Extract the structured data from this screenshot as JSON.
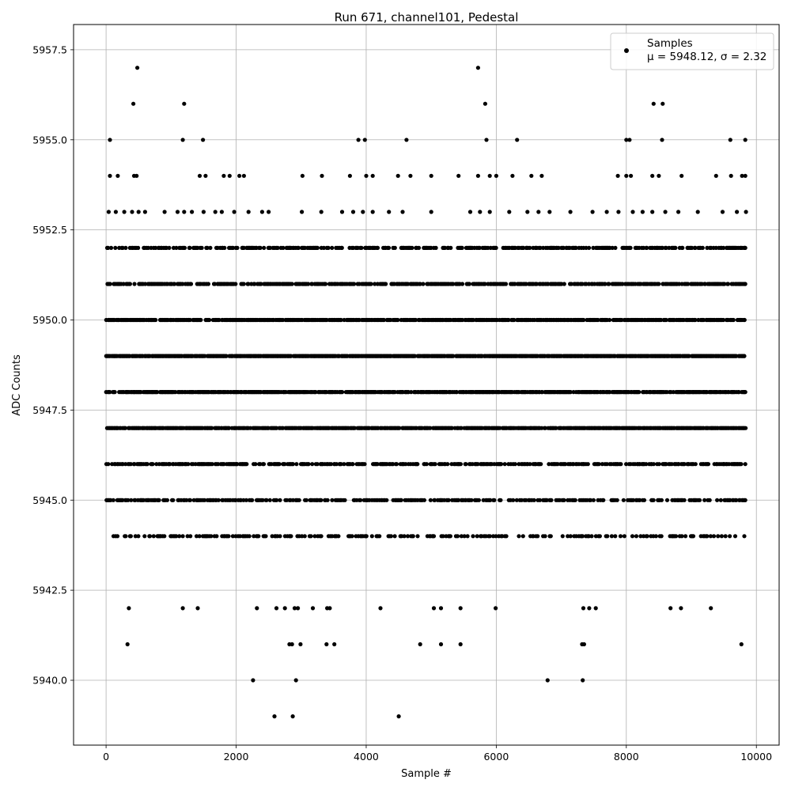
{
  "chart_data": {
    "type": "scatter",
    "title": "Run 671, channel101, Pedestal",
    "xlabel": "Sample #",
    "ylabel": "ADC Counts",
    "xlim": [
      -500,
      10350
    ],
    "ylim": [
      5938.2,
      5958.2
    ],
    "x_ticks": [
      0,
      2000,
      4000,
      6000,
      8000,
      10000
    ],
    "x_tick_labels": [
      "0",
      "2000",
      "4000",
      "6000",
      "8000",
      "10000"
    ],
    "y_ticks": [
      5940.0,
      5942.5,
      5945.0,
      5947.5,
      5950.0,
      5952.5,
      5955.0,
      5957.5
    ],
    "y_tick_labels": [
      "5940.0",
      "5942.5",
      "5945.0",
      "5947.5",
      "5950.0",
      "5952.5",
      "5955.0",
      "5957.5"
    ],
    "grid": true,
    "legend": {
      "placement": "top-right",
      "entries": [
        {
          "label": "Samples",
          "stats": "μ = 5948.12, σ = 2.32"
        }
      ]
    },
    "marker_color": "#000000",
    "series": [
      {
        "name": "Samples",
        "sample_count": 9841,
        "mean": 5948.12,
        "std": 2.32,
        "level_sample_ranges": {
          "5946": [
            [
              0,
              9841
            ]
          ],
          "5947": [
            [
              0,
              9841
            ]
          ],
          "5948": [
            [
              0,
              9841
            ]
          ],
          "5949": [
            [
              0,
              9841
            ]
          ],
          "5950": [
            [
              0,
              9841
            ]
          ],
          "5951": [
            [
              0,
              9841
            ]
          ],
          "5945": [
            [
              0,
              9841
            ]
          ],
          "5952": [
            [
              0,
              9841
            ]
          ],
          "5944": [
            [
              0,
              9841
            ]
          ]
        },
        "points": [
          [
            60,
            5955
          ],
          [
            480,
            5957
          ],
          [
            420,
            5956
          ],
          [
            1200,
            5956
          ],
          [
            1180,
            5955
          ],
          [
            1490,
            5955
          ],
          [
            3880,
            5955
          ],
          [
            3980,
            5955
          ],
          [
            4620,
            5955
          ],
          [
            5720,
            5957
          ],
          [
            5830,
            5956
          ],
          [
            5850,
            5955
          ],
          [
            6320,
            5955
          ],
          [
            8000,
            5955
          ],
          [
            8050,
            5955
          ],
          [
            8420,
            5956
          ],
          [
            8560,
            5956
          ],
          [
            8550,
            5955
          ],
          [
            9600,
            5955
          ],
          [
            9830,
            5955
          ],
          [
            60,
            5954
          ],
          [
            180,
            5954
          ],
          [
            430,
            5954
          ],
          [
            470,
            5954
          ],
          [
            1440,
            5954
          ],
          [
            1530,
            5954
          ],
          [
            1810,
            5954
          ],
          [
            1900,
            5954
          ],
          [
            2050,
            5954
          ],
          [
            2120,
            5954
          ],
          [
            3020,
            5954
          ],
          [
            3320,
            5954
          ],
          [
            3750,
            5954
          ],
          [
            4000,
            5954
          ],
          [
            4100,
            5954
          ],
          [
            4490,
            5954
          ],
          [
            4680,
            5954
          ],
          [
            5000,
            5954
          ],
          [
            5420,
            5954
          ],
          [
            5720,
            5954
          ],
          [
            5900,
            5954
          ],
          [
            6000,
            5954
          ],
          [
            6250,
            5954
          ],
          [
            6540,
            5954
          ],
          [
            6700,
            5954
          ],
          [
            7870,
            5954
          ],
          [
            8000,
            5954
          ],
          [
            8070,
            5954
          ],
          [
            8400,
            5954
          ],
          [
            8500,
            5954
          ],
          [
            8850,
            5954
          ],
          [
            9380,
            5954
          ],
          [
            9610,
            5954
          ],
          [
            9780,
            5954
          ],
          [
            9830,
            5954
          ],
          [
            40,
            5953
          ],
          [
            150,
            5953
          ],
          [
            280,
            5953
          ],
          [
            400,
            5953
          ],
          [
            500,
            5953
          ],
          [
            600,
            5953
          ],
          [
            900,
            5953
          ],
          [
            1100,
            5953
          ],
          [
            1200,
            5953
          ],
          [
            1320,
            5953
          ],
          [
            1500,
            5953
          ],
          [
            1680,
            5953
          ],
          [
            1780,
            5953
          ],
          [
            1970,
            5953
          ],
          [
            2190,
            5953
          ],
          [
            2400,
            5953
          ],
          [
            2500,
            5953
          ],
          [
            3010,
            5953
          ],
          [
            3310,
            5953
          ],
          [
            3630,
            5953
          ],
          [
            3800,
            5953
          ],
          [
            3950,
            5953
          ],
          [
            4100,
            5953
          ],
          [
            4350,
            5953
          ],
          [
            4560,
            5953
          ],
          [
            5000,
            5953
          ],
          [
            5600,
            5953
          ],
          [
            5750,
            5953
          ],
          [
            5900,
            5953
          ],
          [
            6200,
            5953
          ],
          [
            6480,
            5953
          ],
          [
            6650,
            5953
          ],
          [
            6820,
            5953
          ],
          [
            7140,
            5953
          ],
          [
            7480,
            5953
          ],
          [
            7700,
            5953
          ],
          [
            7880,
            5953
          ],
          [
            8100,
            5953
          ],
          [
            8250,
            5953
          ],
          [
            8400,
            5953
          ],
          [
            8600,
            5953
          ],
          [
            8800,
            5953
          ],
          [
            9100,
            5953
          ],
          [
            9480,
            5953
          ],
          [
            9700,
            5953
          ],
          [
            9840,
            5953
          ],
          [
            350,
            5942
          ],
          [
            1180,
            5942
          ],
          [
            1410,
            5942
          ],
          [
            2320,
            5942
          ],
          [
            2620,
            5942
          ],
          [
            2750,
            5942
          ],
          [
            2900,
            5942
          ],
          [
            2950,
            5942
          ],
          [
            3180,
            5942
          ],
          [
            3400,
            5942
          ],
          [
            3440,
            5942
          ],
          [
            4220,
            5942
          ],
          [
            5040,
            5942
          ],
          [
            5150,
            5942
          ],
          [
            5450,
            5942
          ],
          [
            5990,
            5942
          ],
          [
            7340,
            5942
          ],
          [
            7430,
            5942
          ],
          [
            7530,
            5942
          ],
          [
            8680,
            5942
          ],
          [
            8840,
            5942
          ],
          [
            9300,
            5942
          ],
          [
            330,
            5941
          ],
          [
            2820,
            5941
          ],
          [
            2860,
            5941
          ],
          [
            2990,
            5941
          ],
          [
            3390,
            5941
          ],
          [
            3510,
            5941
          ],
          [
            4830,
            5941
          ],
          [
            5150,
            5941
          ],
          [
            5450,
            5941
          ],
          [
            7320,
            5941
          ],
          [
            7350,
            5941
          ],
          [
            9770,
            5941
          ],
          [
            2260,
            5940
          ],
          [
            2920,
            5940
          ],
          [
            6790,
            5940
          ],
          [
            7330,
            5940
          ],
          [
            2590,
            5939
          ],
          [
            2870,
            5939
          ],
          [
            4500,
            5939
          ]
        ]
      }
    ]
  }
}
